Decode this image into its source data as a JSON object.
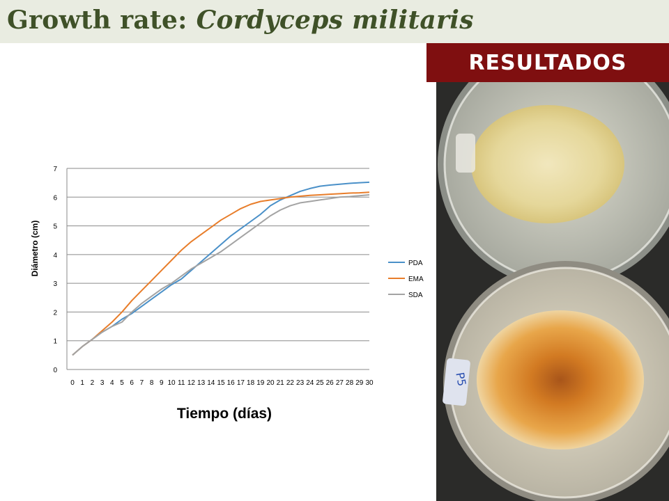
{
  "header": {
    "title_prefix": "Growth rate:",
    "title_species": "Cordyceps militaris"
  },
  "results_label": "RESULTADOS",
  "chart_data": {
    "type": "line",
    "xlabel": "Tiempo (días)",
    "ylabel": "Diámetro (cm)",
    "ylim": [
      0,
      7
    ],
    "yticks": [
      0,
      1,
      2,
      3,
      4,
      5,
      6,
      7
    ],
    "x": [
      0,
      1,
      2,
      3,
      4,
      5,
      6,
      7,
      8,
      9,
      10,
      11,
      12,
      13,
      14,
      15,
      16,
      17,
      18,
      19,
      20,
      21,
      22,
      23,
      24,
      25,
      26,
      27,
      28,
      29,
      30
    ],
    "grid": "horizontal",
    "legend_position": "right",
    "series": [
      {
        "name": "PDA",
        "color": "#4a90c8",
        "values": [
          0.5,
          0.8,
          1.05,
          1.3,
          1.5,
          1.75,
          1.95,
          2.2,
          2.45,
          2.7,
          2.95,
          3.15,
          3.45,
          3.75,
          4.05,
          4.35,
          4.65,
          4.9,
          5.15,
          5.4,
          5.7,
          5.9,
          6.05,
          6.2,
          6.3,
          6.38,
          6.42,
          6.45,
          6.48,
          6.5,
          6.52
        ]
      },
      {
        "name": "EMA",
        "color": "#e87d2a",
        "values": [
          0.5,
          0.8,
          1.05,
          1.35,
          1.65,
          2.0,
          2.4,
          2.75,
          3.1,
          3.45,
          3.8,
          4.15,
          4.45,
          4.7,
          4.95,
          5.2,
          5.4,
          5.6,
          5.75,
          5.85,
          5.9,
          5.95,
          6.0,
          6.03,
          6.06,
          6.08,
          6.1,
          6.12,
          6.14,
          6.15,
          6.17
        ]
      },
      {
        "name": "SDA",
        "color": "#a3a3a3",
        "values": [
          0.5,
          0.8,
          1.05,
          1.3,
          1.5,
          1.65,
          2.0,
          2.3,
          2.55,
          2.8,
          3.0,
          3.25,
          3.5,
          3.7,
          3.9,
          4.1,
          4.35,
          4.6,
          4.85,
          5.1,
          5.35,
          5.55,
          5.7,
          5.8,
          5.85,
          5.9,
          5.95,
          6.0,
          6.02,
          6.05,
          6.08
        ]
      }
    ]
  },
  "photo_panel": {
    "description_icon": "petri-dish-icon",
    "plate_label": "P5",
    "colors": {
      "top_colony": "#e8dca0",
      "bottom_colony": "#d9892a",
      "background": "#2b2b29"
    }
  }
}
